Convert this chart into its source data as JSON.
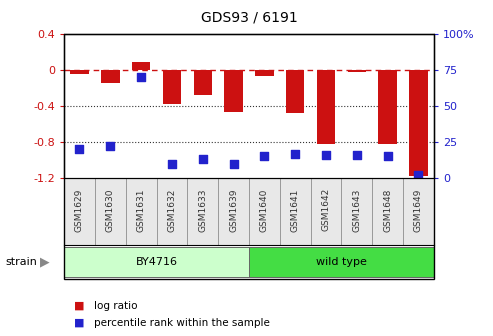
{
  "title": "GDS93 / 6191",
  "samples": [
    "GSM1629",
    "GSM1630",
    "GSM1631",
    "GSM1632",
    "GSM1633",
    "GSM1639",
    "GSM1640",
    "GSM1641",
    "GSM1642",
    "GSM1643",
    "GSM1648",
    "GSM1649"
  ],
  "log_ratio": [
    -0.05,
    -0.15,
    0.08,
    -0.38,
    -0.28,
    -0.47,
    -0.07,
    -0.48,
    -0.82,
    -0.02,
    -0.82,
    -1.18
  ],
  "percentile_rank": [
    20,
    22,
    70,
    10,
    13,
    10,
    15,
    17,
    16,
    16,
    15,
    2
  ],
  "ylim_left": [
    -1.2,
    0.4
  ],
  "ylim_right": [
    0,
    100
  ],
  "bar_color": "#cc1111",
  "dot_color": "#2222cc",
  "dashed_line_color": "#cc1111",
  "dotted_line_color": "#333333",
  "bg_color": "#ffffff",
  "strain_groups": [
    {
      "label": "BY4716",
      "start": 0,
      "end": 6,
      "color": "#ccffcc"
    },
    {
      "label": "wild type",
      "start": 6,
      "end": 12,
      "color": "#44dd44"
    }
  ],
  "strain_label": "strain",
  "legend_items": [
    {
      "label": "log ratio",
      "color": "#cc1111"
    },
    {
      "label": "percentile rank within the sample",
      "color": "#2222cc"
    }
  ],
  "right_yticks": [
    0,
    25,
    50,
    75,
    100
  ],
  "right_yticklabels": [
    "0",
    "25",
    "50",
    "75",
    "100%"
  ],
  "left_yticks": [
    -1.2,
    -0.8,
    -0.4,
    0.0,
    0.4
  ],
  "left_yticklabels": [
    "-1.2",
    "-0.8",
    "-0.4",
    "0",
    "0.4"
  ],
  "bar_width": 0.6,
  "dot_size": 30
}
